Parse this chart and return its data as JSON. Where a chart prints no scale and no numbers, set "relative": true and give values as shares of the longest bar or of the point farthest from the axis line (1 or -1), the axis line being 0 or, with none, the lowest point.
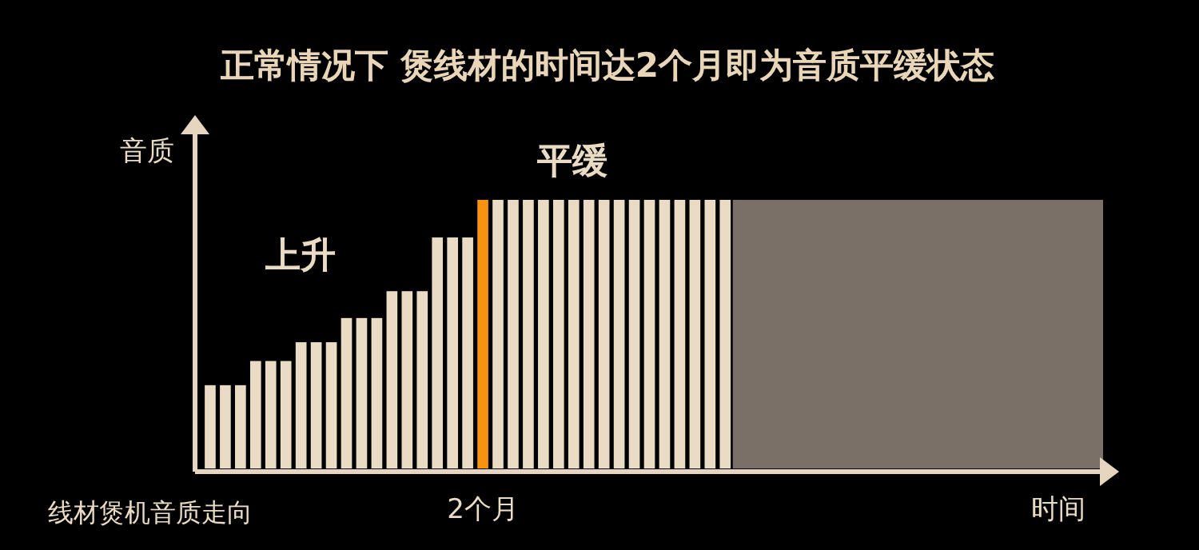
{
  "chart_data": {
    "type": "bar",
    "relative": true,
    "title": "正常情况下 煲线材的时间达2个月即为音质平缓状态",
    "ylabel": "音质",
    "categories": [
      null,
      null,
      null,
      null,
      null,
      null,
      null,
      null,
      null,
      null,
      null,
      null,
      null,
      null,
      null,
      null,
      null,
      null,
      null,
      null,
      null,
      null,
      null,
      null,
      null,
      null,
      null,
      null,
      null,
      null,
      null,
      null,
      null,
      null,
      null
    ],
    "values": [
      0.31,
      0.31,
      0.31,
      0.4,
      0.4,
      0.4,
      0.47,
      0.47,
      0.47,
      0.56,
      0.56,
      0.56,
      0.66,
      0.66,
      0.66,
      0.86,
      0.86,
      0.86,
      1,
      1,
      1,
      1,
      1,
      1,
      1,
      1,
      1,
      1,
      1,
      1,
      1,
      1,
      1,
      1,
      1
    ],
    "colors": [
      "#eadbc4",
      "#eadbc4",
      "#eadbc4",
      "#eadbc4",
      "#eadbc4",
      "#eadbc4",
      "#eadbc4",
      "#eadbc4",
      "#eadbc4",
      "#eadbc4",
      "#eadbc4",
      "#eadbc4",
      "#eadbc4",
      "#eadbc4",
      "#eadbc4",
      "#eadbc4",
      "#eadbc4",
      "#eadbc4",
      "#f7930e",
      "#eadbc4",
      "#eadbc4",
      "#eadbc4",
      "#eadbc4",
      "#eadbc4",
      "#eadbc4",
      "#eadbc4",
      "#eadbc4",
      "#eadbc4",
      "#eadbc4",
      "#eadbc4",
      "#eadbc4",
      "#eadbc4",
      "#eadbc4",
      "#eadbc4",
      "#eadbc4"
    ],
    "annotations": [
      "上升",
      "平缓",
      "2个月",
      "线材煲机音质走向",
      "时间"
    ]
  }
}
